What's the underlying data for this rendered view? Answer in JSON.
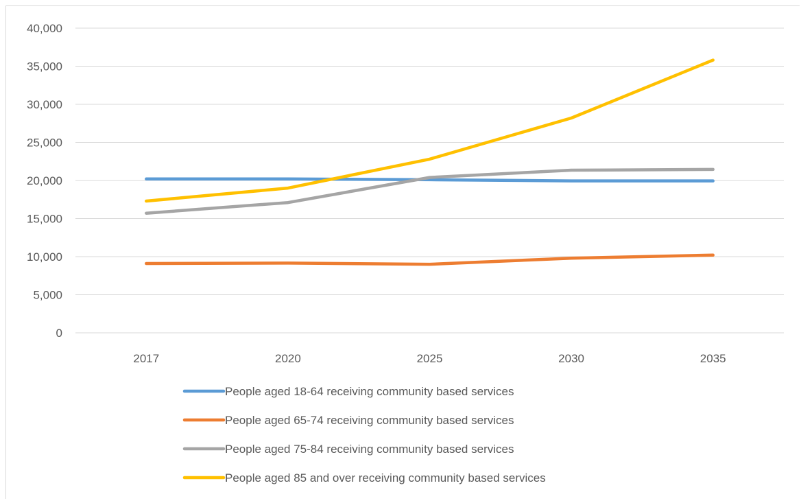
{
  "chart_data": {
    "type": "line",
    "title": "",
    "xlabel": "",
    "ylabel": "",
    "categories": [
      "2017",
      "2020",
      "2025",
      "2030",
      "2035"
    ],
    "ylim": [
      0,
      40000
    ],
    "ytick_values": [
      0,
      5000,
      10000,
      15000,
      20000,
      25000,
      30000,
      35000,
      40000
    ],
    "ytick_labels": [
      "0",
      "5,000",
      "10,000",
      "15,000",
      "20,000",
      "25,000",
      "30,000",
      "35,000",
      "40,000"
    ],
    "grid": "horizontal",
    "legend_position": "bottom",
    "series": [
      {
        "name": "People aged 18-64 receiving community based services",
        "color": "#5b9bd5",
        "values": [
          20200,
          20200,
          20100,
          19950,
          19950
        ]
      },
      {
        "name": "People aged 65-74 receiving community based services",
        "color": "#ed7d31",
        "values": [
          9100,
          9150,
          9000,
          9800,
          10200
        ]
      },
      {
        "name": "People aged 75-84 receiving community based services",
        "color": "#a5a5a5",
        "values": [
          15700,
          17100,
          20400,
          21350,
          21450
        ]
      },
      {
        "name": "People aged 85 and over receiving community based services",
        "color": "#ffc000",
        "values": [
          17300,
          19000,
          22800,
          28200,
          35800
        ]
      }
    ]
  }
}
